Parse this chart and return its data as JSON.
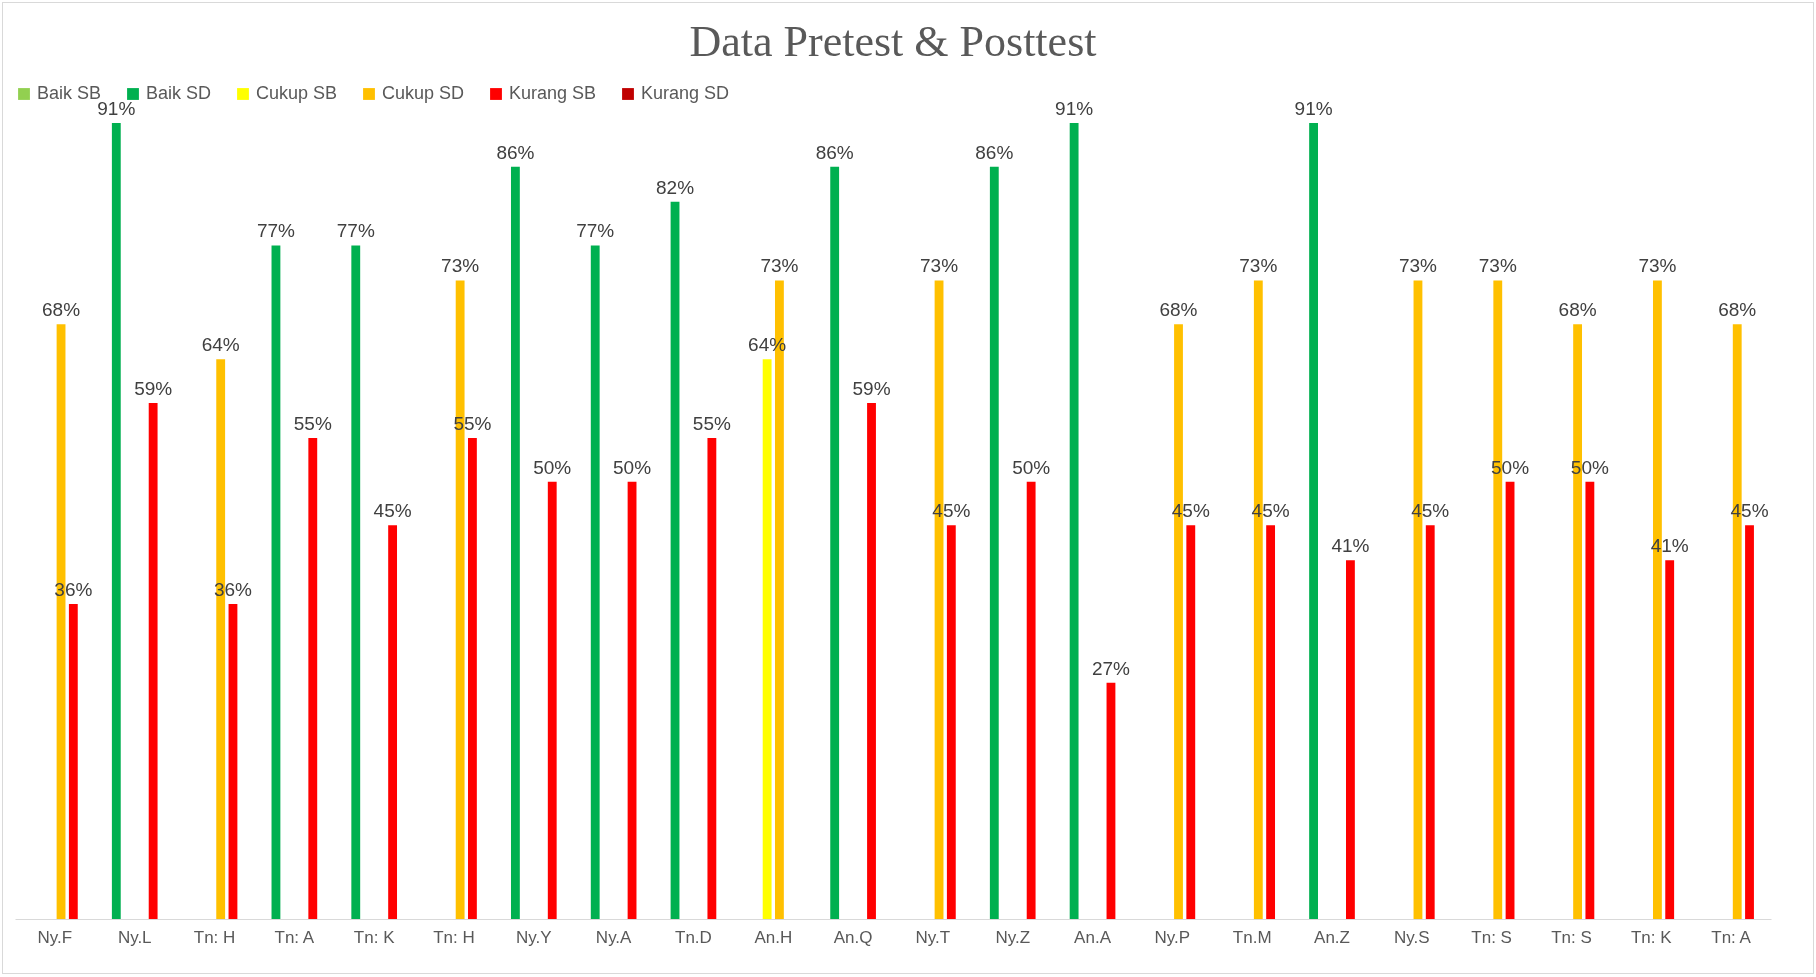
{
  "chart_data": {
    "type": "bar",
    "title": "Data Pretest & Posttest",
    "legend": "top",
    "categories": [
      "Ny.F",
      "Ny.L",
      "Tn: H",
      "Tn: A",
      "Tn: K",
      "Tn: H",
      "Ny.Y",
      "Ny.A",
      "Tn.D",
      "An.H",
      "An.Q",
      "Ny.T",
      "Ny.Z",
      "An.A",
      "Ny.P",
      "Tn.M",
      "An.Z",
      "Ny.S",
      "Tn: S",
      "Tn: S",
      "Tn: K",
      "Tn: A"
    ],
    "series": [
      {
        "name": "Baik SB",
        "color": "#92d050",
        "values": [
          null,
          null,
          null,
          null,
          null,
          null,
          null,
          null,
          null,
          null,
          null,
          null,
          null,
          null,
          null,
          null,
          null,
          null,
          null,
          null,
          null,
          null
        ],
        "value_labels": [
          null,
          null,
          null,
          null,
          null,
          null,
          null,
          null,
          null,
          null,
          null,
          null,
          null,
          null,
          null,
          null,
          null,
          null,
          null,
          null,
          null,
          null
        ]
      },
      {
        "name": "Baik SD",
        "color": "#00b050",
        "values": [
          null,
          91,
          null,
          77,
          77,
          null,
          86,
          77,
          82,
          null,
          86,
          null,
          86,
          91,
          null,
          null,
          91,
          null,
          null,
          null,
          null,
          null
        ],
        "value_labels": [
          null,
          "91%",
          null,
          "77%",
          "77%",
          null,
          "86%",
          "77%",
          "82%",
          null,
          "86%",
          null,
          "86%",
          "91%",
          null,
          null,
          "91%",
          null,
          null,
          null,
          null,
          null
        ]
      },
      {
        "name": "Cukup SB",
        "color": "#ffff00",
        "values": [
          null,
          null,
          null,
          null,
          null,
          null,
          null,
          null,
          null,
          64,
          null,
          null,
          null,
          null,
          null,
          null,
          null,
          null,
          null,
          null,
          null,
          null
        ],
        "value_labels": [
          null,
          null,
          null,
          null,
          null,
          null,
          null,
          null,
          null,
          "64%",
          null,
          null,
          null,
          null,
          null,
          null,
          null,
          null,
          null,
          null,
          null,
          null
        ]
      },
      {
        "name": "Cukup SD",
        "color": "#ffc000",
        "values": [
          68,
          null,
          64,
          null,
          null,
          73,
          null,
          null,
          null,
          73,
          null,
          73,
          null,
          null,
          68,
          73,
          null,
          73,
          73,
          68,
          73,
          68
        ],
        "value_labels": [
          "68%",
          null,
          "64%",
          null,
          null,
          "73%",
          null,
          null,
          null,
          "73%",
          null,
          "73%",
          null,
          null,
          "68%",
          "73%",
          null,
          "73%",
          "73%",
          "68%",
          "73%",
          "68%"
        ]
      },
      {
        "name": "Kurang SB",
        "color": "#ff0000",
        "values": [
          36,
          59,
          36,
          55,
          45,
          55,
          50,
          50,
          55,
          null,
          59,
          45,
          50,
          27,
          45,
          45,
          41,
          45,
          50,
          50,
          41,
          45
        ],
        "value_labels": [
          "36%",
          "59%",
          "36%",
          "55%",
          "45%",
          "55%",
          "50%",
          "50%",
          "55%",
          null,
          "59%",
          "45%",
          "50%",
          "27%",
          "45%",
          "45%",
          "41%",
          "45%",
          "50%",
          "50%",
          "41%",
          "45%"
        ]
      },
      {
        "name": "Kurang SD",
        "color": "#c00000",
        "values": [
          null,
          null,
          null,
          null,
          null,
          null,
          null,
          null,
          null,
          null,
          null,
          null,
          null,
          null,
          null,
          null,
          null,
          null,
          null,
          null,
          null,
          null
        ],
        "value_labels": [
          null,
          null,
          null,
          null,
          null,
          null,
          null,
          null,
          null,
          null,
          null,
          null,
          null,
          null,
          null,
          null,
          null,
          null,
          null,
          null,
          null,
          null
        ]
      }
    ]
  }
}
